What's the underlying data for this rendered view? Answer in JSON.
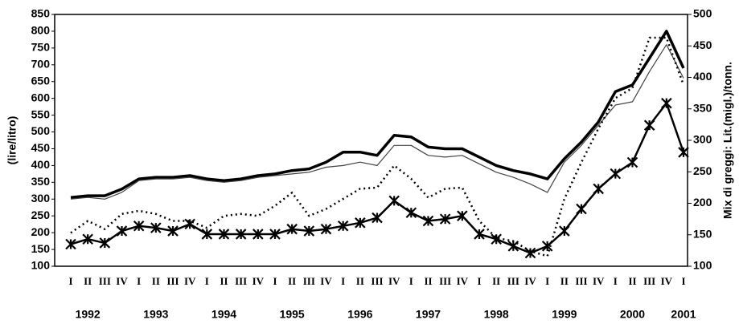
{
  "chart_data": {
    "type": "line",
    "ylabel": "(lire/litro)",
    "y2label": "Mix di greggi: Lit.(migl.)/tonn.",
    "categories": [
      "I",
      "II",
      "III",
      "IV",
      "I",
      "II",
      "III",
      "IV",
      "I",
      "II",
      "III",
      "IV",
      "I",
      "II",
      "III",
      "IV",
      "I",
      "II",
      "III",
      "IV",
      "I",
      "II",
      "III",
      "IV",
      "I",
      "II",
      "III",
      "IV",
      "I",
      "II",
      "III",
      "IV",
      "I",
      "II",
      "III",
      "IV",
      "I"
    ],
    "years": [
      "1992",
      "1993",
      "1994",
      "1995",
      "1996",
      "1997",
      "1998",
      "1999",
      "2000",
      "2001"
    ],
    "ylim": [
      100,
      850
    ],
    "yticks": [
      100,
      150,
      200,
      250,
      300,
      350,
      400,
      450,
      500,
      550,
      600,
      650,
      700,
      750,
      800,
      850
    ],
    "y2lim": [
      100,
      500
    ],
    "y2ticks": [
      100,
      150,
      200,
      250,
      300,
      350,
      400,
      450,
      500
    ],
    "series": [
      {
        "color": "#000000",
        "style": "thick",
        "values": [
          305,
          310,
          310,
          330,
          360,
          365,
          365,
          370,
          360,
          355,
          360,
          370,
          375,
          385,
          390,
          410,
          440,
          440,
          430,
          490,
          485,
          455,
          450,
          450,
          425,
          400,
          385,
          375,
          360,
          420,
          470,
          530,
          620,
          640,
          720,
          800,
          690
        ]
      },
      {
        "color": "#444444",
        "style": "thin",
        "values": [
          300,
          305,
          300,
          320,
          355,
          360,
          360,
          365,
          355,
          350,
          355,
          365,
          370,
          375,
          380,
          395,
          400,
          410,
          400,
          460,
          460,
          430,
          425,
          430,
          405,
          380,
          365,
          345,
          320,
          410,
          460,
          520,
          580,
          590,
          680,
          760,
          660
        ]
      },
      {
        "color": "#000000",
        "style": "dotted",
        "axis": "y2",
        "values": [
          153,
          172,
          159,
          183,
          188,
          183,
          172,
          172,
          161,
          180,
          183,
          180,
          196,
          217,
          180,
          191,
          207,
          223,
          225,
          260,
          239,
          209,
          223,
          225,
          172,
          145,
          140,
          124,
          116,
          207,
          265,
          319,
          367,
          383,
          463,
          463,
          388
        ]
      },
      {
        "color": "#000000",
        "style": "cross",
        "axis": "y2",
        "values": [
          135,
          143,
          137,
          156,
          164,
          161,
          156,
          167,
          151,
          151,
          151,
          151,
          151,
          159,
          156,
          159,
          164,
          169,
          177,
          204,
          185,
          172,
          175,
          180,
          151,
          143,
          132,
          121,
          132,
          156,
          191,
          223,
          247,
          265,
          324,
          359,
          281
        ]
      }
    ]
  }
}
